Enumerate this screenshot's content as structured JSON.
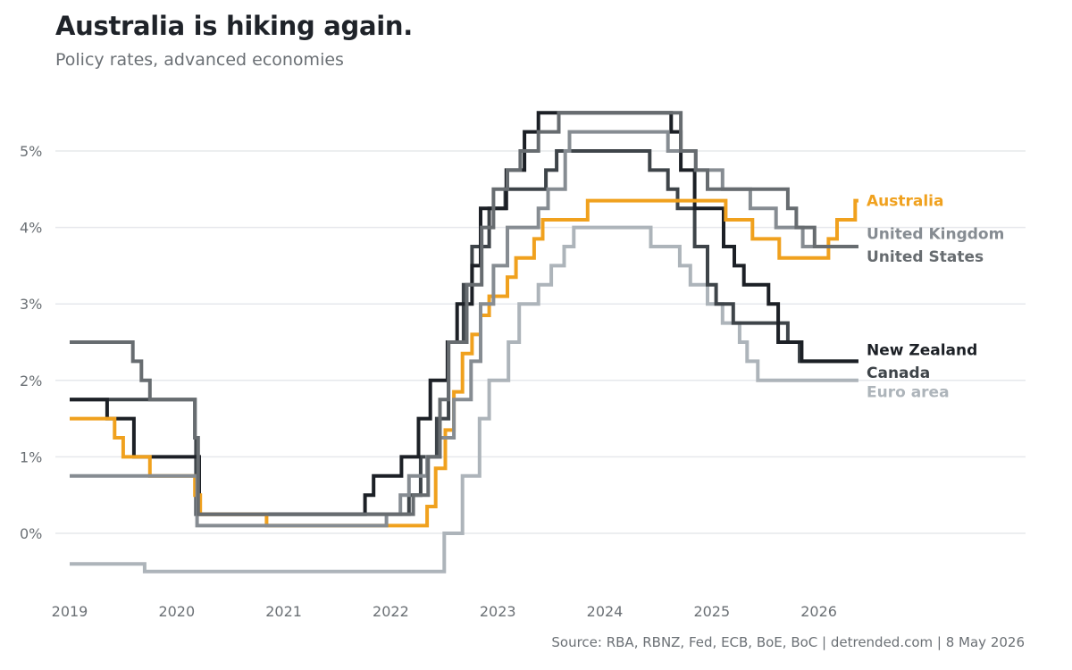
{
  "title": "Australia is hiking again.",
  "subtitle": "Policy rates, advanced economies",
  "source": "Source: RBA, RBNZ, Fed, ECB, BoE, BoC | detrended.com | 8 May 2026",
  "chart_data": {
    "type": "line",
    "step": true,
    "title": "Australia is hiking again.",
    "subtitle": "Policy rates, advanced economies",
    "xlim": [
      2019.0,
      2026.6
    ],
    "ylim": [
      -0.55,
      5.6
    ],
    "x_ticks": [
      2019,
      2020,
      2021,
      2022,
      2023,
      2024,
      2025,
      2026
    ],
    "x_tick_labels": [
      "2019",
      "2020",
      "2021",
      "2022",
      "2023",
      "2024",
      "2025",
      "2026"
    ],
    "y_ticks": [
      0,
      1,
      2,
      3,
      4,
      5
    ],
    "y_tick_labels": [
      "0%",
      "1%",
      "2%",
      "3%",
      "4%",
      "5%"
    ],
    "grid": "horizontal",
    "legend": "direct labels at right end of lines",
    "series": [
      {
        "name": "Euro area",
        "color": "#adb4ba",
        "points": [
          [
            2019.0,
            -0.4
          ],
          [
            2019.7,
            -0.5
          ],
          [
            2022.5,
            0.0
          ],
          [
            2022.67,
            0.75
          ],
          [
            2022.83,
            1.5
          ],
          [
            2022.92,
            2.0
          ],
          [
            2023.1,
            2.5
          ],
          [
            2023.2,
            3.0
          ],
          [
            2023.38,
            3.25
          ],
          [
            2023.5,
            3.5
          ],
          [
            2023.62,
            3.75
          ],
          [
            2023.71,
            4.0
          ],
          [
            2024.43,
            3.75
          ],
          [
            2024.7,
            3.5
          ],
          [
            2024.8,
            3.25
          ],
          [
            2024.96,
            3.0
          ],
          [
            2025.1,
            2.75
          ],
          [
            2025.26,
            2.5
          ],
          [
            2025.33,
            2.25
          ],
          [
            2025.43,
            2.0
          ],
          [
            2026.37,
            2.0
          ]
        ]
      },
      {
        "name": "Canada",
        "color": "#3e4449",
        "points": [
          [
            2019.0,
            1.75
          ],
          [
            2020.17,
            1.25
          ],
          [
            2020.18,
            0.25
          ],
          [
            2022.17,
            0.5
          ],
          [
            2022.28,
            1.0
          ],
          [
            2022.43,
            1.5
          ],
          [
            2022.54,
            2.5
          ],
          [
            2022.68,
            3.25
          ],
          [
            2022.76,
            3.75
          ],
          [
            2022.92,
            4.25
          ],
          [
            2023.07,
            4.5
          ],
          [
            2023.45,
            4.75
          ],
          [
            2023.55,
            5.0
          ],
          [
            2024.42,
            4.75
          ],
          [
            2024.59,
            4.5
          ],
          [
            2024.68,
            4.25
          ],
          [
            2024.84,
            3.75
          ],
          [
            2024.96,
            3.25
          ],
          [
            2025.04,
            3.0
          ],
          [
            2025.2,
            2.75
          ],
          [
            2025.71,
            2.5
          ],
          [
            2025.82,
            2.25
          ],
          [
            2026.37,
            2.25
          ]
        ]
      },
      {
        "name": "New Zealand",
        "color": "#1c2026",
        "points": [
          [
            2019.0,
            1.75
          ],
          [
            2019.35,
            1.5
          ],
          [
            2019.6,
            1.0
          ],
          [
            2020.21,
            0.25
          ],
          [
            2021.76,
            0.5
          ],
          [
            2021.84,
            0.75
          ],
          [
            2022.1,
            1.0
          ],
          [
            2022.26,
            1.5
          ],
          [
            2022.37,
            2.0
          ],
          [
            2022.53,
            2.5
          ],
          [
            2022.62,
            3.0
          ],
          [
            2022.76,
            3.5
          ],
          [
            2022.84,
            4.25
          ],
          [
            2023.08,
            4.75
          ],
          [
            2023.25,
            5.25
          ],
          [
            2023.38,
            5.5
          ],
          [
            2024.62,
            5.25
          ],
          [
            2024.71,
            4.75
          ],
          [
            2024.84,
            4.25
          ],
          [
            2025.11,
            3.75
          ],
          [
            2025.21,
            3.5
          ],
          [
            2025.3,
            3.25
          ],
          [
            2025.53,
            3.0
          ],
          [
            2025.62,
            2.5
          ],
          [
            2025.84,
            2.25
          ],
          [
            2026.37,
            2.25
          ]
        ]
      },
      {
        "name": "Australia",
        "color": "#f0a11e",
        "points": [
          [
            2019.0,
            1.5
          ],
          [
            2019.42,
            1.25
          ],
          [
            2019.5,
            1.0
          ],
          [
            2019.75,
            0.75
          ],
          [
            2020.17,
            0.5
          ],
          [
            2020.22,
            0.25
          ],
          [
            2020.84,
            0.1
          ],
          [
            2022.34,
            0.35
          ],
          [
            2022.42,
            0.85
          ],
          [
            2022.51,
            1.35
          ],
          [
            2022.59,
            1.85
          ],
          [
            2022.67,
            2.35
          ],
          [
            2022.76,
            2.6
          ],
          [
            2022.84,
            2.85
          ],
          [
            2022.92,
            3.1
          ],
          [
            2023.09,
            3.35
          ],
          [
            2023.17,
            3.6
          ],
          [
            2023.34,
            3.85
          ],
          [
            2023.42,
            4.1
          ],
          [
            2023.84,
            4.35
          ],
          [
            2025.13,
            4.1
          ],
          [
            2025.38,
            3.85
          ],
          [
            2025.63,
            3.6
          ],
          [
            2026.09,
            3.85
          ],
          [
            2026.17,
            4.1
          ],
          [
            2026.34,
            4.35
          ],
          [
            2026.37,
            4.35
          ]
        ]
      },
      {
        "name": "United Kingdom",
        "color": "#868c92",
        "points": [
          [
            2019.0,
            0.75
          ],
          [
            2020.19,
            0.1
          ],
          [
            2021.96,
            0.25
          ],
          [
            2022.09,
            0.5
          ],
          [
            2022.17,
            0.75
          ],
          [
            2022.34,
            1.0
          ],
          [
            2022.46,
            1.25
          ],
          [
            2022.59,
            1.75
          ],
          [
            2022.75,
            2.25
          ],
          [
            2022.84,
            3.0
          ],
          [
            2022.96,
            3.5
          ],
          [
            2023.09,
            4.0
          ],
          [
            2023.38,
            4.25
          ],
          [
            2023.47,
            4.5
          ],
          [
            2023.63,
            5.0
          ],
          [
            2023.67,
            5.25
          ],
          [
            2024.59,
            5.0
          ],
          [
            2024.85,
            4.75
          ],
          [
            2025.1,
            4.5
          ],
          [
            2025.36,
            4.25
          ],
          [
            2025.6,
            4.0
          ],
          [
            2025.85,
            3.75
          ],
          [
            2026.37,
            3.75
          ]
        ]
      },
      {
        "name": "United States",
        "color": "#676c70",
        "points": [
          [
            2019.0,
            2.5
          ],
          [
            2019.59,
            2.25
          ],
          [
            2019.67,
            2.0
          ],
          [
            2019.75,
            1.75
          ],
          [
            2020.17,
            1.25
          ],
          [
            2020.2,
            0.25
          ],
          [
            2022.21,
            0.5
          ],
          [
            2022.35,
            1.0
          ],
          [
            2022.46,
            1.75
          ],
          [
            2022.54,
            2.5
          ],
          [
            2022.71,
            3.25
          ],
          [
            2022.85,
            4.0
          ],
          [
            2022.96,
            4.5
          ],
          [
            2023.09,
            4.75
          ],
          [
            2023.21,
            5.0
          ],
          [
            2023.38,
            5.25
          ],
          [
            2023.57,
            5.5
          ],
          [
            2024.71,
            5.0
          ],
          [
            2024.85,
            4.75
          ],
          [
            2024.96,
            4.5
          ],
          [
            2025.71,
            4.25
          ],
          [
            2025.79,
            4.0
          ],
          [
            2025.96,
            3.75
          ],
          [
            2026.37,
            3.75
          ]
        ]
      }
    ],
    "end_labels": [
      {
        "name": "Australia",
        "text": "Australia",
        "color": "#f0a11e",
        "y": 4.35
      },
      {
        "name": "United Kingdom",
        "text": "United Kingdom",
        "color": "#868c92",
        "y": 3.92
      },
      {
        "name": "United States",
        "text": "United States",
        "color": "#676c70",
        "y": 3.62
      },
      {
        "name": "New Zealand",
        "text": "New Zealand",
        "color": "#1c2026",
        "y": 2.4
      },
      {
        "name": "Canada",
        "text": "Canada",
        "color": "#3e4449",
        "y": 2.1
      },
      {
        "name": "Euro area",
        "text": "Euro area",
        "color": "#adb4ba",
        "y": 1.85
      }
    ]
  }
}
